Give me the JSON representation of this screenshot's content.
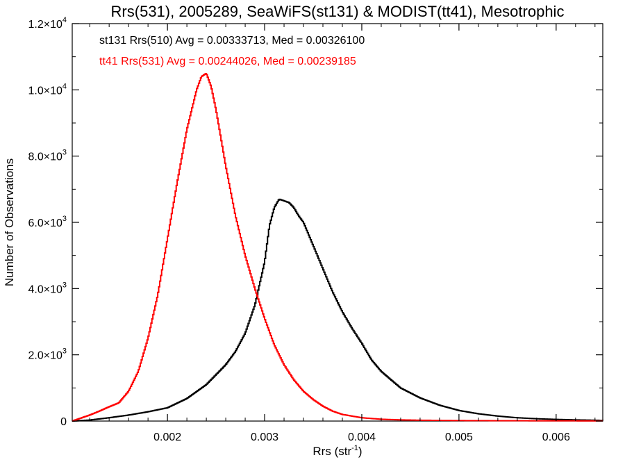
{
  "chart_data": {
    "type": "histogram",
    "title": "Rrs(531), 2005289, SeaWiFS(st131) & MODIST(tt41), Mesotrophic",
    "xlabel": {
      "base": "Rrs (str",
      "sup": "-1",
      "close": ")"
    },
    "ylabel": "Number of Observations",
    "xlim": [
      0.00102,
      0.00648
    ],
    "ylim": [
      0,
      12000
    ],
    "grid": false,
    "legend_position": "top-left",
    "x_ticks": [
      {
        "value": 0.002,
        "label": "0.002"
      },
      {
        "value": 0.003,
        "label": "0.003"
      },
      {
        "value": 0.004,
        "label": "0.004"
      },
      {
        "value": 0.005,
        "label": "0.005"
      },
      {
        "value": 0.006,
        "label": "0.006"
      }
    ],
    "y_ticks": [
      {
        "value": 0,
        "mant": "0",
        "exp": ""
      },
      {
        "value": 2000,
        "mant": "2.0×10",
        "exp": "3"
      },
      {
        "value": 4000,
        "mant": "4.0×10",
        "exp": "3"
      },
      {
        "value": 6000,
        "mant": "6.0×10",
        "exp": "3"
      },
      {
        "value": 8000,
        "mant": "8.0×10",
        "exp": "3"
      },
      {
        "value": 10000,
        "mant": "1.0×10",
        "exp": "4"
      },
      {
        "value": 12000,
        "mant": "1.2×10",
        "exp": "4"
      }
    ],
    "series": [
      {
        "label": "st131 Rrs(510) Avg = 0.00333713, Med = 0.00326100",
        "color": "#000000",
        "x": [
          0.00102,
          0.0012,
          0.0014,
          0.0016,
          0.0018,
          0.002,
          0.0022,
          0.0024,
          0.0026,
          0.0027,
          0.0028,
          0.0029,
          0.003,
          0.00305,
          0.0031,
          0.00315,
          0.0032,
          0.00325,
          0.0033,
          0.00335,
          0.0034,
          0.0035,
          0.0036,
          0.0037,
          0.0038,
          0.0039,
          0.004,
          0.0041,
          0.0042,
          0.0043,
          0.0044,
          0.0046,
          0.0048,
          0.005,
          0.0052,
          0.0054,
          0.0056,
          0.0058,
          0.006,
          0.0062,
          0.0064,
          0.00648
        ],
        "y": [
          0,
          30,
          100,
          180,
          280,
          400,
          680,
          1100,
          1700,
          2100,
          2650,
          3500,
          4800,
          5900,
          6450,
          6700,
          6650,
          6600,
          6450,
          6200,
          6000,
          5300,
          4600,
          3900,
          3300,
          2800,
          2350,
          1850,
          1500,
          1250,
          1000,
          700,
          480,
          320,
          220,
          150,
          100,
          70,
          50,
          35,
          25,
          20
        ]
      },
      {
        "label": "tt41 Rrs(531) Avg = 0.00244026, Med = 0.00239185",
        "color": "#ff0000",
        "x": [
          0.00102,
          0.0011,
          0.0012,
          0.0013,
          0.0014,
          0.0015,
          0.0016,
          0.0017,
          0.0018,
          0.0019,
          0.002,
          0.0021,
          0.0022,
          0.0023,
          0.00235,
          0.0024,
          0.00245,
          0.0025,
          0.0026,
          0.0027,
          0.0028,
          0.0029,
          0.003,
          0.0031,
          0.0032,
          0.0033,
          0.0034,
          0.0035,
          0.0036,
          0.0037,
          0.0038,
          0.004,
          0.0042,
          0.0044,
          0.0046,
          0.0048,
          0.005,
          0.0055,
          0.006,
          0.00648
        ],
        "y": [
          0,
          80,
          180,
          300,
          430,
          550,
          900,
          1500,
          2500,
          3800,
          5500,
          7200,
          8800,
          10000,
          10400,
          10500,
          10100,
          9400,
          7700,
          6200,
          5000,
          4000,
          3100,
          2300,
          1700,
          1250,
          900,
          650,
          450,
          300,
          200,
          100,
          55,
          35,
          25,
          20,
          15,
          10,
          8,
          5
        ]
      }
    ]
  }
}
